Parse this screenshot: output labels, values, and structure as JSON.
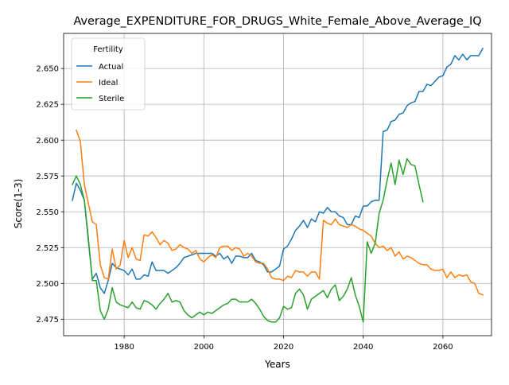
{
  "chart_data": {
    "type": "line",
    "title": "Average_EXPENDITURE_FOR_DRUGS_White_Female_Above_Average_IQ",
    "xlabel": "Years",
    "ylabel": "Score(1-3)",
    "xlim": [
      1964.8,
      2072.2
    ],
    "ylim": [
      2.4635,
      2.6745
    ],
    "xticks": [
      1980,
      2000,
      2020,
      2040,
      2060
    ],
    "yticks": [
      2.475,
      2.5,
      2.525,
      2.55,
      2.575,
      2.6,
      2.625,
      2.65
    ],
    "ytick_labels": [
      "2.475",
      "2.500",
      "2.525",
      "2.550",
      "2.575",
      "2.600",
      "2.625",
      "2.650"
    ],
    "grid": true,
    "legend": {
      "title": "Fertility",
      "position": "top-left"
    },
    "series": [
      {
        "name": "Actual",
        "color": "#1f77b4",
        "points": [
          [
            1967,
            2.558
          ],
          [
            1968,
            2.57
          ],
          [
            1969,
            2.565
          ],
          [
            1970,
            2.558
          ],
          [
            1971,
            2.53
          ],
          [
            1972,
            2.503
          ],
          [
            1973,
            2.507
          ],
          [
            1974,
            2.497
          ],
          [
            1975,
            2.493
          ],
          [
            1976,
            2.502
          ],
          [
            1977,
            2.514
          ],
          [
            1978,
            2.511
          ],
          [
            1979,
            2.51
          ],
          [
            1980,
            2.509
          ],
          [
            1981,
            2.506
          ],
          [
            1982,
            2.51
          ],
          [
            1983,
            2.503
          ],
          [
            1984,
            2.503
          ],
          [
            1985,
            2.506
          ],
          [
            1986,
            2.505
          ],
          [
            1987,
            2.515
          ],
          [
            1988,
            2.509
          ],
          [
            1989,
            2.509
          ],
          [
            1990,
            2.509
          ],
          [
            1991,
            2.507
          ],
          [
            1992,
            2.509
          ],
          [
            1993,
            2.511
          ],
          [
            1994,
            2.514
          ],
          [
            1995,
            2.518
          ],
          [
            1996,
            2.519
          ],
          [
            1997,
            2.52
          ],
          [
            1998,
            2.521
          ],
          [
            1999,
            2.521
          ],
          [
            2000,
            2.521
          ],
          [
            2001,
            2.521
          ],
          [
            2002,
            2.521
          ],
          [
            2003,
            2.519
          ],
          [
            2004,
            2.521
          ],
          [
            2005,
            2.517
          ],
          [
            2006,
            2.519
          ],
          [
            2007,
            2.514
          ],
          [
            2008,
            2.519
          ],
          [
            2009,
            2.519
          ],
          [
            2010,
            2.518
          ],
          [
            2011,
            2.518
          ],
          [
            2012,
            2.521
          ],
          [
            2013,
            2.516
          ],
          [
            2014,
            2.515
          ],
          [
            2015,
            2.513
          ],
          [
            2016,
            2.508
          ],
          [
            2017,
            2.508
          ],
          [
            2018,
            2.51
          ],
          [
            2019,
            2.512
          ],
          [
            2020,
            2.524
          ],
          [
            2021,
            2.526
          ],
          [
            2022,
            2.531
          ],
          [
            2023,
            2.537
          ],
          [
            2024,
            2.54
          ],
          [
            2025,
            2.544
          ],
          [
            2026,
            2.539
          ],
          [
            2027,
            2.545
          ],
          [
            2028,
            2.543
          ],
          [
            2029,
            2.55
          ],
          [
            2030,
            2.549
          ],
          [
            2031,
            2.553
          ],
          [
            2032,
            2.55
          ],
          [
            2033,
            2.55
          ],
          [
            2034,
            2.547
          ],
          [
            2035,
            2.546
          ],
          [
            2036,
            2.541
          ],
          [
            2037,
            2.541
          ],
          [
            2038,
            2.547
          ],
          [
            2039,
            2.546
          ],
          [
            2040,
            2.554
          ],
          [
            2041,
            2.554
          ],
          [
            2042,
            2.557
          ],
          [
            2043,
            2.558
          ],
          [
            2044,
            2.558
          ],
          [
            2045,
            2.606
          ],
          [
            2046,
            2.607
          ],
          [
            2047,
            2.613
          ],
          [
            2048,
            2.614
          ],
          [
            2049,
            2.618
          ],
          [
            2050,
            2.619
          ],
          [
            2051,
            2.624
          ],
          [
            2052,
            2.626
          ],
          [
            2053,
            2.627
          ],
          [
            2054,
            2.634
          ],
          [
            2055,
            2.634
          ],
          [
            2056,
            2.639
          ],
          [
            2057,
            2.638
          ],
          [
            2058,
            2.641
          ],
          [
            2059,
            2.644
          ],
          [
            2060,
            2.645
          ],
          [
            2061,
            2.651
          ],
          [
            2062,
            2.653
          ],
          [
            2063,
            2.659
          ],
          [
            2064,
            2.656
          ],
          [
            2065,
            2.66
          ],
          [
            2066,
            2.656
          ],
          [
            2067,
            2.659
          ],
          [
            2068,
            2.659
          ],
          [
            2069,
            2.659
          ],
          [
            2070,
            2.664
          ]
        ]
      },
      {
        "name": "Ideal",
        "color": "#ff7f0e",
        "points": [
          [
            1968,
            2.607
          ],
          [
            1969,
            2.599
          ],
          [
            1970,
            2.569
          ],
          [
            1971,
            2.556
          ],
          [
            1972,
            2.543
          ],
          [
            1973,
            2.541
          ],
          [
            1974,
            2.513
          ],
          [
            1975,
            2.504
          ],
          [
            1976,
            2.503
          ],
          [
            1977,
            2.524
          ],
          [
            1978,
            2.51
          ],
          [
            1979,
            2.513
          ],
          [
            1980,
            2.53
          ],
          [
            1981,
            2.518
          ],
          [
            1982,
            2.525
          ],
          [
            1983,
            2.517
          ],
          [
            1984,
            2.516
          ],
          [
            1985,
            2.534
          ],
          [
            1986,
            2.533
          ],
          [
            1987,
            2.536
          ],
          [
            1988,
            2.532
          ],
          [
            1989,
            2.527
          ],
          [
            1990,
            2.53
          ],
          [
            1991,
            2.528
          ],
          [
            1992,
            2.523
          ],
          [
            1993,
            2.524
          ],
          [
            1994,
            2.527
          ],
          [
            1995,
            2.525
          ],
          [
            1996,
            2.524
          ],
          [
            1997,
            2.521
          ],
          [
            1998,
            2.523
          ],
          [
            1999,
            2.517
          ],
          [
            2000,
            2.515
          ],
          [
            2001,
            2.518
          ],
          [
            2002,
            2.52
          ],
          [
            2003,
            2.518
          ],
          [
            2004,
            2.525
          ],
          [
            2005,
            2.526
          ],
          [
            2006,
            2.526
          ],
          [
            2007,
            2.523
          ],
          [
            2008,
            2.525
          ],
          [
            2009,
            2.524
          ],
          [
            2010,
            2.519
          ],
          [
            2011,
            2.521
          ],
          [
            2012,
            2.519
          ],
          [
            2013,
            2.515
          ],
          [
            2014,
            2.514
          ],
          [
            2015,
            2.514
          ],
          [
            2016,
            2.51
          ],
          [
            2017,
            2.504
          ],
          [
            2018,
            2.503
          ],
          [
            2019,
            2.503
          ],
          [
            2020,
            2.502
          ],
          [
            2021,
            2.505
          ],
          [
            2022,
            2.504
          ],
          [
            2023,
            2.509
          ],
          [
            2024,
            2.508
          ],
          [
            2025,
            2.508
          ],
          [
            2026,
            2.505
          ],
          [
            2027,
            2.508
          ],
          [
            2028,
            2.508
          ],
          [
            2029,
            2.503
          ],
          [
            2030,
            2.544
          ],
          [
            2031,
            2.542
          ],
          [
            2032,
            2.541
          ],
          [
            2033,
            2.545
          ],
          [
            2034,
            2.541
          ],
          [
            2035,
            2.54
          ],
          [
            2036,
            2.539
          ],
          [
            2037,
            2.541
          ],
          [
            2038,
            2.54
          ],
          [
            2039,
            2.538
          ],
          [
            2040,
            2.537
          ],
          [
            2041,
            2.535
          ],
          [
            2042,
            2.533
          ],
          [
            2043,
            2.528
          ],
          [
            2044,
            2.525
          ],
          [
            2045,
            2.526
          ],
          [
            2046,
            2.523
          ],
          [
            2047,
            2.525
          ],
          [
            2048,
            2.519
          ],
          [
            2049,
            2.522
          ],
          [
            2050,
            2.517
          ],
          [
            2051,
            2.519
          ],
          [
            2052,
            2.518
          ],
          [
            2053,
            2.516
          ],
          [
            2054,
            2.514
          ],
          [
            2055,
            2.513
          ],
          [
            2056,
            2.513
          ],
          [
            2057,
            2.51
          ],
          [
            2058,
            2.509
          ],
          [
            2059,
            2.509
          ],
          [
            2060,
            2.51
          ],
          [
            2061,
            2.504
          ],
          [
            2062,
            2.508
          ],
          [
            2063,
            2.504
          ],
          [
            2064,
            2.506
          ],
          [
            2065,
            2.505
          ],
          [
            2066,
            2.506
          ],
          [
            2067,
            2.501
          ],
          [
            2068,
            2.5
          ],
          [
            2069,
            2.493
          ],
          [
            2070,
            2.492
          ]
        ]
      },
      {
        "name": "Sterile",
        "color": "#2ca02c",
        "points": [
          [
            1967,
            2.569
          ],
          [
            1968,
            2.575
          ],
          [
            1969,
            2.569
          ],
          [
            1970,
            2.558
          ],
          [
            1971,
            2.532
          ],
          [
            1972,
            2.502
          ],
          [
            1973,
            2.502
          ],
          [
            1974,
            2.481
          ],
          [
            1975,
            2.475
          ],
          [
            1976,
            2.482
          ],
          [
            1977,
            2.497
          ],
          [
            1978,
            2.487
          ],
          [
            1979,
            2.485
          ],
          [
            1980,
            2.484
          ],
          [
            1981,
            2.483
          ],
          [
            1982,
            2.487
          ],
          [
            1983,
            2.483
          ],
          [
            1984,
            2.482
          ],
          [
            1985,
            2.488
          ],
          [
            1986,
            2.487
          ],
          [
            1987,
            2.485
          ],
          [
            1988,
            2.482
          ],
          [
            1989,
            2.486
          ],
          [
            1990,
            2.489
          ],
          [
            1991,
            2.493
          ],
          [
            1992,
            2.487
          ],
          [
            1993,
            2.488
          ],
          [
            1994,
            2.487
          ],
          [
            1995,
            2.481
          ],
          [
            1996,
            2.478
          ],
          [
            1997,
            2.476
          ],
          [
            1998,
            2.478
          ],
          [
            1999,
            2.48
          ],
          [
            2000,
            2.478
          ],
          [
            2001,
            2.48
          ],
          [
            2002,
            2.479
          ],
          [
            2003,
            2.481
          ],
          [
            2004,
            2.483
          ],
          [
            2005,
            2.485
          ],
          [
            2006,
            2.486
          ],
          [
            2007,
            2.489
          ],
          [
            2008,
            2.489
          ],
          [
            2009,
            2.487
          ],
          [
            2010,
            2.487
          ],
          [
            2011,
            2.487
          ],
          [
            2012,
            2.489
          ],
          [
            2013,
            2.486
          ],
          [
            2014,
            2.482
          ],
          [
            2015,
            2.477
          ],
          [
            2016,
            2.474
          ],
          [
            2017,
            2.473
          ],
          [
            2018,
            2.473
          ],
          [
            2019,
            2.476
          ],
          [
            2020,
            2.484
          ],
          [
            2021,
            2.482
          ],
          [
            2022,
            2.483
          ],
          [
            2023,
            2.493
          ],
          [
            2024,
            2.496
          ],
          [
            2025,
            2.492
          ],
          [
            2026,
            2.482
          ],
          [
            2027,
            2.489
          ],
          [
            2028,
            2.491
          ],
          [
            2029,
            2.493
          ],
          [
            2030,
            2.495
          ],
          [
            2031,
            2.49
          ],
          [
            2032,
            2.496
          ],
          [
            2033,
            2.499
          ],
          [
            2034,
            2.488
          ],
          [
            2035,
            2.491
          ],
          [
            2036,
            2.496
          ],
          [
            2037,
            2.504
          ],
          [
            2038,
            2.492
          ],
          [
            2039,
            2.484
          ],
          [
            2040,
            2.473
          ],
          [
            2041,
            2.529
          ],
          [
            2042,
            2.521
          ],
          [
            2043,
            2.528
          ],
          [
            2044,
            2.549
          ],
          [
            2045,
            2.558
          ],
          [
            2046,
            2.572
          ],
          [
            2047,
            2.584
          ],
          [
            2048,
            2.569
          ],
          [
            2049,
            2.586
          ],
          [
            2050,
            2.576
          ],
          [
            2051,
            2.587
          ],
          [
            2052,
            2.583
          ],
          [
            2053,
            2.582
          ],
          [
            2054,
            2.569
          ],
          [
            2055,
            2.557
          ]
        ]
      }
    ]
  }
}
